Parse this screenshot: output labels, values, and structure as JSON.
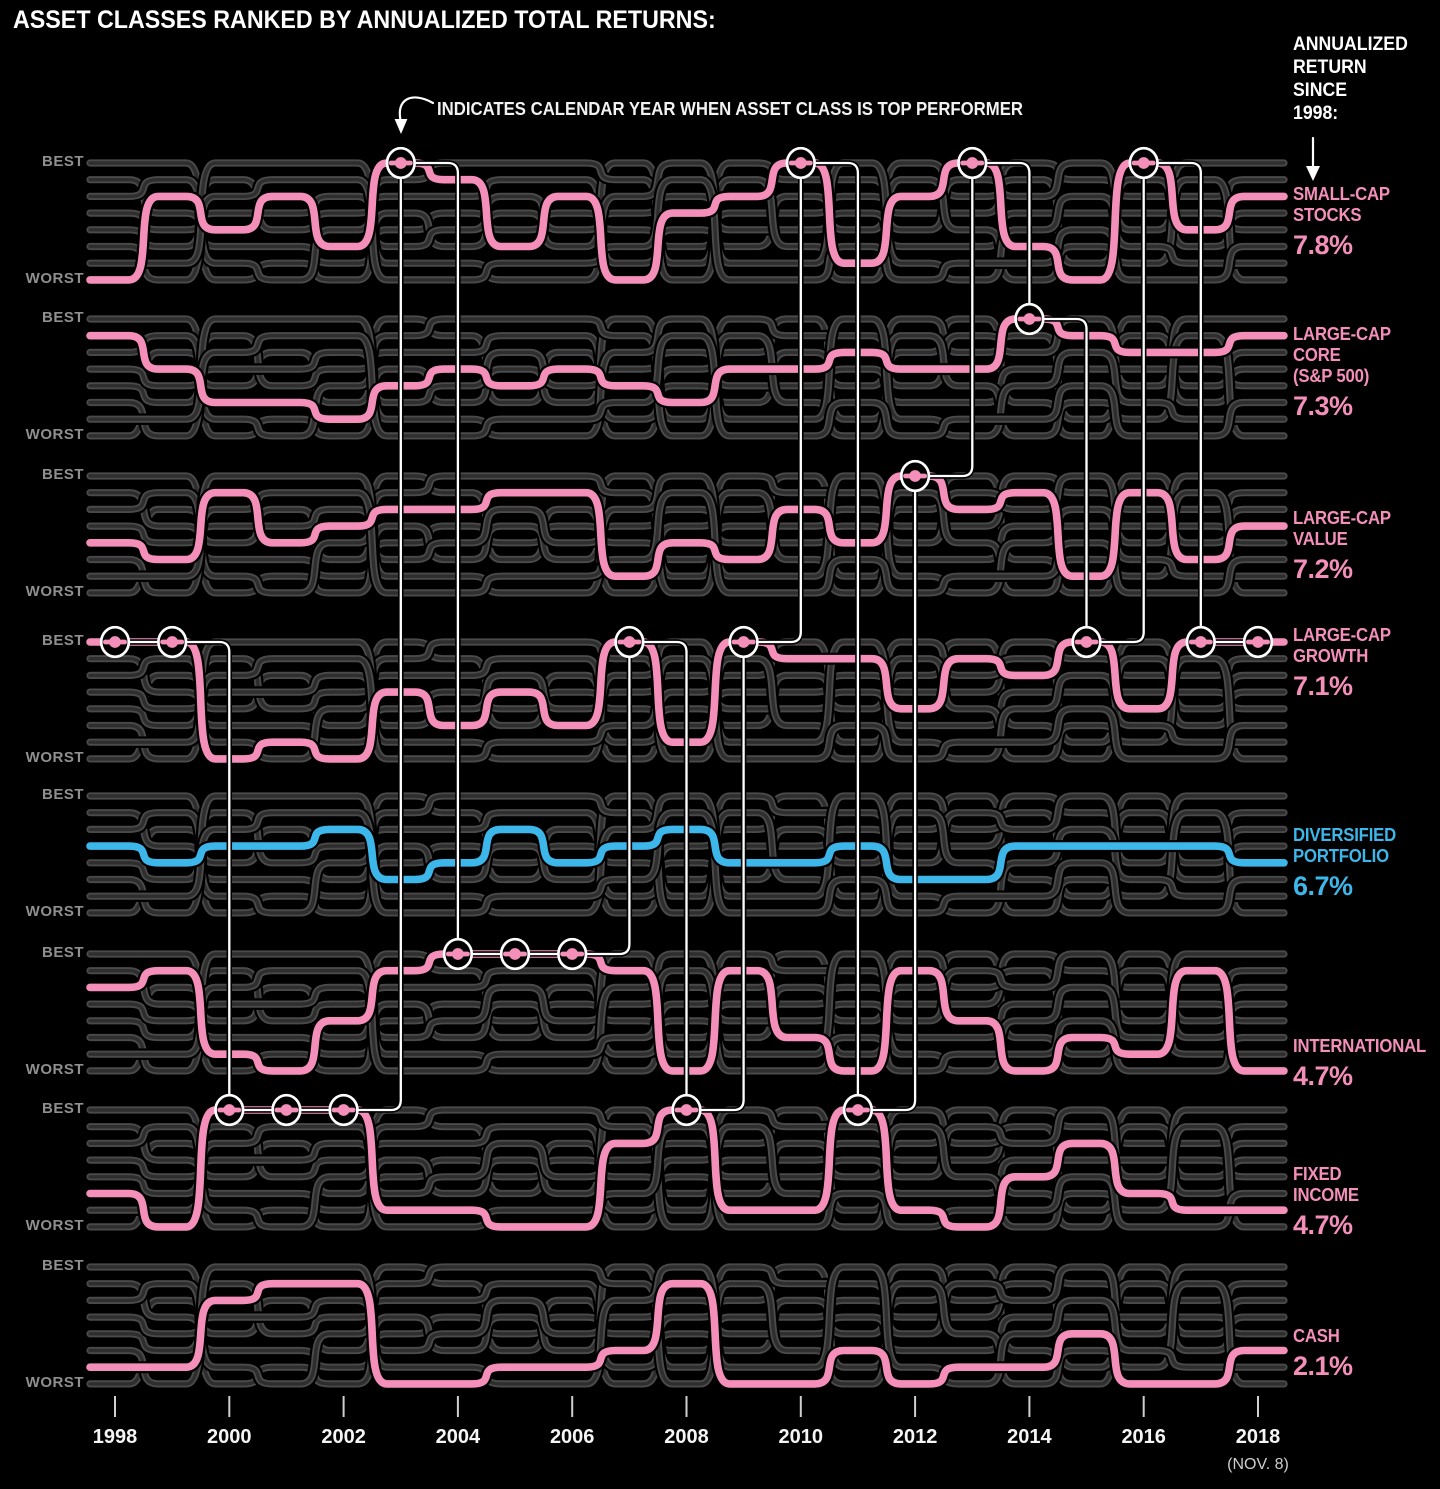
{
  "title": "ASSET CLASSES RANKED BY ANNUALIZED TOTAL RETURNS:",
  "annotation": "INDICATES CALENDAR YEAR WHEN ASSET CLASS IS TOP PERFORMER",
  "right_header": "ANNUALIZED\nRETURN\nSINCE\n1998:",
  "row_labels": {
    "best": "BEST",
    "worst": "WORST"
  },
  "x_axis": {
    "tick_years": [
      "1998",
      "2000",
      "2002",
      "2004",
      "2006",
      "2008",
      "2010",
      "2012",
      "2014",
      "2016",
      "2018"
    ],
    "note": "(NOV. 8)"
  },
  "colors": {
    "background": "#000000",
    "gray_line_outer": "#4a4a4a",
    "gray_line_inner": "#2e2e2e",
    "pink": "#F48FBA",
    "blue": "#3DB6E9",
    "connector": "#FFFFFF",
    "axis_text": "#F5F5F5",
    "muted_text": "#8F8F8F",
    "note_text": "#CDCDCD"
  },
  "chart_data": {
    "type": "bump",
    "years": [
      1998,
      1999,
      2000,
      2001,
      2002,
      2003,
      2004,
      2005,
      2006,
      2007,
      2008,
      2009,
      2010,
      2011,
      2012,
      2013,
      2014,
      2015,
      2016,
      2017,
      2018
    ],
    "best_rank": 1,
    "worst_rank": 8,
    "rank_axis": {
      "top_label": "BEST",
      "bottom_label": "WORST"
    },
    "series": [
      {
        "label": "SMALL-CAP\nSTOCKS",
        "annualized_return": "7.8%",
        "color_key": "pink",
        "ranks": [
          8,
          3,
          5,
          3,
          6,
          1,
          2,
          6,
          3,
          8,
          4,
          3,
          1,
          7,
          3,
          1,
          6,
          8,
          1,
          5,
          3
        ]
      },
      {
        "label": "LARGE-CAP\nCORE\n(S&P 500)",
        "annualized_return": "7.3%",
        "color_key": "pink",
        "ranks": [
          2,
          4,
          6,
          6,
          7,
          5,
          4,
          5,
          4,
          5,
          6,
          4,
          4,
          3,
          4,
          4,
          1,
          2,
          3,
          3,
          2
        ]
      },
      {
        "label": "LARGE-CAP\nVALUE",
        "annualized_return": "7.2%",
        "color_key": "pink",
        "ranks": [
          5,
          6,
          2,
          5,
          4,
          3,
          3,
          2,
          2,
          7,
          5,
          6,
          3,
          5,
          1,
          3,
          2,
          7,
          2,
          6,
          4
        ]
      },
      {
        "label": "LARGE-CAP\nGROWTH",
        "annualized_return": "7.1%",
        "color_key": "pink",
        "ranks": [
          1,
          1,
          8,
          7,
          8,
          4,
          6,
          4,
          6,
          1,
          7,
          1,
          2,
          2,
          5,
          2,
          3,
          1,
          5,
          1,
          1
        ]
      },
      {
        "label": "DIVERSIFIED\nPORTFOLIO",
        "annualized_return": "6.7%",
        "color_key": "blue",
        "ranks": [
          4,
          5,
          4,
          4,
          3,
          6,
          5,
          3,
          5,
          4,
          3,
          5,
          5,
          4,
          6,
          6,
          4,
          4,
          4,
          4,
          5
        ]
      },
      {
        "label": "INTERNATIONAL",
        "annualized_return": "4.7%",
        "color_key": "pink",
        "ranks": [
          3,
          2,
          7,
          8,
          5,
          2,
          1,
          1,
          1,
          2,
          8,
          2,
          6,
          8,
          2,
          5,
          8,
          6,
          7,
          2,
          8
        ]
      },
      {
        "label": "FIXED\nINCOME",
        "annualized_return": "4.7%",
        "color_key": "pink",
        "ranks": [
          6,
          8,
          1,
          1,
          1,
          7,
          7,
          8,
          8,
          3,
          1,
          7,
          7,
          1,
          7,
          8,
          5,
          3,
          6,
          7,
          7
        ]
      },
      {
        "label": "CASH",
        "annualized_return": "2.1%",
        "color_key": "pink",
        "ranks": [
          7,
          7,
          3,
          2,
          2,
          8,
          8,
          7,
          7,
          6,
          2,
          8,
          8,
          6,
          8,
          7,
          7,
          5,
          8,
          8,
          6
        ]
      }
    ],
    "top_performer_index_by_year": [
      3,
      3,
      6,
      6,
      6,
      0,
      5,
      5,
      5,
      3,
      6,
      3,
      0,
      6,
      2,
      0,
      1,
      3,
      0,
      3,
      3
    ]
  }
}
